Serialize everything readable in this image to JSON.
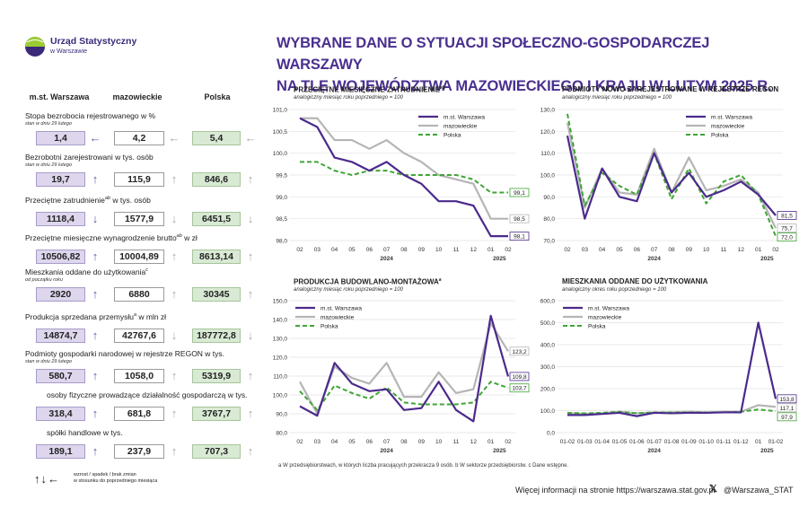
{
  "logo": {
    "line1": "Urząd Statystyczny",
    "line2": "w Warszawie"
  },
  "title": {
    "line1": "WYBRANE DANE O SYTUACJI SPOŁECZNO-GOSPODARCZEJ WARSZAWY",
    "line2": "NA TLE WOJEWÓDZTWA MAZOWIECKIEGO I KRAJU W LUTYM 2025 R."
  },
  "columns": {
    "war": "m.st. Warszawa",
    "maz": "mazowieckie",
    "pol": "Polska"
  },
  "indicators": [
    {
      "label": "Stopa bezrobocia rejestrowanego w %",
      "sup": "",
      "sub": "stan w dniu 29 lutego",
      "war": "1,4",
      "maz": "4,2",
      "pol": "5,4",
      "war_dir": "left",
      "maz_dir": "left",
      "pol_dir": "left"
    },
    {
      "label": "Bezrobotni zarejestrowani w tys. osób",
      "sup": "",
      "sub": "stan w dniu 29 lutego",
      "war": "19,7",
      "maz": "115,9",
      "pol": "846,6",
      "war_dir": "up",
      "maz_dir": "up",
      "pol_dir": "up"
    },
    {
      "label": "Przeciętne zatrudnienie",
      "sup": "ab",
      "label2": " w tys. osób",
      "sub": "",
      "war": "1118,4",
      "maz": "1577,9",
      "pol": "6451,5",
      "war_dir": "down",
      "maz_dir": "down",
      "pol_dir": "down"
    },
    {
      "label": "Przeciętne miesięczne wynagrodzenie brutto",
      "sup": "ab",
      "label2": " w zł",
      "sub": "",
      "war": "10506,82",
      "maz": "10004,89",
      "pol": "8613,14",
      "war_dir": "up",
      "maz_dir": "up",
      "pol_dir": "up"
    },
    {
      "label": "Mieszkania oddane do użytkowania",
      "sup": "c",
      "sub": "od początku roku",
      "war": "2920",
      "maz": "6880",
      "pol": "30345",
      "war_dir": "up",
      "maz_dir": "up",
      "pol_dir": "up"
    },
    {
      "label": "Produkcja sprzedana przemysłu",
      "sup": "a",
      "label2": " w mln zł",
      "sub": "",
      "war": "14874,7",
      "maz": "42767,6",
      "pol": "187772,8",
      "war_dir": "up",
      "maz_dir": "down",
      "pol_dir": "down"
    },
    {
      "label": "Podmioty gospodarki narodowej w rejestrze REGON w tys.",
      "sup": "",
      "sub": "stan w dniu 29 lutego",
      "war": "580,7",
      "maz": "1058,0",
      "pol": "5319,9",
      "war_dir": "up",
      "maz_dir": "up",
      "pol_dir": "up"
    },
    {
      "label": "osoby fizyczne prowadzące działalność gospodarczą w tys.",
      "sup": "",
      "sub": "",
      "war": "318,4",
      "maz": "681,8",
      "pol": "3767,7",
      "war_dir": "up",
      "maz_dir": "up",
      "pol_dir": "up"
    },
    {
      "label": "spółki handlowe w tys.",
      "sup": "",
      "sub": "",
      "war": "189,1",
      "maz": "237,9",
      "pol": "707,3",
      "war_dir": "up",
      "maz_dir": "up",
      "pol_dir": "up"
    }
  ],
  "arrow_legend": {
    "arrows": "↑↓←",
    "line1": "wzrost / spadek / brak zmian",
    "line2": "w stosunku do poprzedniego miesiąca"
  },
  "colors": {
    "war": "#4b2a8c",
    "maz": "#b5b5b5",
    "pol": "#3fa535",
    "title": "#4a2f8f"
  },
  "chart_data": [
    {
      "type": "line",
      "title": "PRZECIĘTNE MIESIĘCZNE ZATRUDNIENIE",
      "title_sup": "ab",
      "subtitle": "analogiczny miesiąc roku poprzedniego = 100",
      "categories": [
        "02",
        "03",
        "04",
        "05",
        "06",
        "07",
        "08",
        "09",
        "10",
        "11",
        "12",
        "01",
        "02"
      ],
      "year_labels": [
        {
          "label": "2024",
          "at": 5
        },
        {
          "label": "2025",
          "at": 11.5
        }
      ],
      "ylim": [
        98.0,
        101.0
      ],
      "yticks": [
        "98,0",
        "98,5",
        "99,0",
        "99,5",
        "100,0",
        "100,5",
        "101,0"
      ],
      "series": [
        {
          "name": "m.st. Warszawa",
          "key": "war",
          "values": [
            100.8,
            100.6,
            99.9,
            99.8,
            99.6,
            99.8,
            99.5,
            99.3,
            98.9,
            98.9,
            98.8,
            98.1,
            98.1
          ],
          "end_label": "98,1"
        },
        {
          "name": "mazowieckie",
          "key": "maz",
          "values": [
            100.8,
            100.8,
            100.3,
            100.3,
            100.1,
            100.3,
            100.0,
            99.8,
            99.5,
            99.4,
            99.3,
            98.5,
            98.5
          ],
          "end_label": "98,5"
        },
        {
          "name": "Polska",
          "key": "pol",
          "values": [
            99.8,
            99.8,
            99.6,
            99.5,
            99.6,
            99.6,
            99.5,
            99.5,
            99.5,
            99.5,
            99.4,
            99.1,
            99.1
          ],
          "end_label": "99,1"
        }
      ]
    },
    {
      "type": "line",
      "title": "PODMIOTY NOWO ZAREJESTROWANE W REJESTRZE REGON",
      "title_sup": "",
      "subtitle": "analogiczny miesiąc roku poprzedniego = 100",
      "categories": [
        "02",
        "03",
        "04",
        "05",
        "06",
        "07",
        "08",
        "09",
        "10",
        "11",
        "12",
        "01",
        "02"
      ],
      "year_labels": [
        {
          "label": "2024",
          "at": 5
        },
        {
          "label": "2025",
          "at": 11.5
        }
      ],
      "ylim": [
        70.0,
        130.0
      ],
      "yticks": [
        "70,0",
        "80,0",
        "90,0",
        "100,0",
        "110,0",
        "120,0",
        "130,0"
      ],
      "series": [
        {
          "name": "m.st. Warszawa",
          "key": "war",
          "values": [
            118,
            80,
            103,
            90,
            88,
            110,
            92,
            101,
            90,
            93,
            97,
            91,
            81.5
          ],
          "end_label": "81,5"
        },
        {
          "name": "mazowieckie",
          "key": "maz",
          "values": [
            124,
            85,
            103,
            92,
            91,
            112,
            92,
            108,
            93,
            95,
            98,
            92,
            75.7
          ],
          "end_label": "75,7"
        },
        {
          "name": "Polska",
          "key": "pol",
          "values": [
            128,
            86,
            101,
            95,
            91,
            110,
            89,
            103,
            87,
            97,
            100,
            91,
            72.0
          ],
          "end_label": "72,0"
        }
      ]
    },
    {
      "type": "line",
      "title": "PRODUKCJA BUDOWLANO-MONTAŻOWA",
      "title_sup": "a",
      "subtitle": "analogiczny miesiąc roku poprzedniego = 100",
      "categories": [
        "02",
        "03",
        "04",
        "05",
        "06",
        "07",
        "08",
        "09",
        "10",
        "11",
        "12",
        "01",
        "02"
      ],
      "year_labels": [
        {
          "label": "2024",
          "at": 5
        },
        {
          "label": "2025",
          "at": 11.5
        }
      ],
      "ylim": [
        80.0,
        150.0
      ],
      "yticks": [
        "80,0",
        "90,0",
        "100,0",
        "110,0",
        "120,0",
        "130,0",
        "140,0",
        "150,0"
      ],
      "series": [
        {
          "name": "m.st. Warszawa",
          "key": "war",
          "values": [
            94,
            89,
            117,
            106,
            102,
            103,
            92,
            93,
            107,
            92,
            86,
            142,
            109.8
          ],
          "end_label": "109,8"
        },
        {
          "name": "mazowieckie",
          "key": "maz",
          "values": [
            107,
            90,
            115,
            109,
            106,
            117,
            99,
            99,
            112,
            101,
            103,
            138,
            123.2
          ],
          "end_label": "123,2"
        },
        {
          "name": "Polska",
          "key": "pol",
          "values": [
            102,
            92,
            105,
            101,
            98,
            104,
            96,
            95,
            95,
            95,
            96,
            107,
            103.7
          ],
          "end_label": "103,7"
        }
      ]
    },
    {
      "type": "line",
      "title": "MIESZKANIA ODDANE DO UŻYTKOWANIA",
      "title_sup": "",
      "subtitle": "analogiczny okres roku poprzedniego = 100",
      "categories": [
        "01-02",
        "01-03",
        "01-04",
        "01-05",
        "01-06",
        "01-07",
        "01-08",
        "01-09",
        "01-10",
        "01-11",
        "01-12",
        "01",
        "01-02"
      ],
      "year_labels": [
        {
          "label": "2024",
          "at": 5
        },
        {
          "label": "2025",
          "at": 11.5
        }
      ],
      "ylim": [
        0,
        600.0
      ],
      "yticks": [
        "0,0",
        "100,0",
        "200,0",
        "300,0",
        "400,0",
        "500,0",
        "600,0"
      ],
      "series": [
        {
          "name": "m.st. Warszawa",
          "key": "war",
          "values": [
            80,
            80,
            85,
            90,
            75,
            90,
            88,
            90,
            90,
            92,
            92,
            500,
            153.8
          ],
          "end_label": "153,8"
        },
        {
          "name": "mazowieckie",
          "key": "maz",
          "values": [
            88,
            86,
            88,
            95,
            88,
            92,
            92,
            95,
            92,
            95,
            95,
            125,
            117.1
          ],
          "end_label": "117,1"
        },
        {
          "name": "Polska",
          "key": "pol",
          "values": [
            90,
            88,
            90,
            95,
            88,
            92,
            92,
            92,
            92,
            92,
            95,
            105,
            97.9
          ],
          "end_label": "97,9"
        }
      ]
    }
  ],
  "footnote": "a W przedsiębiorstwach, w których liczba pracujących przekracza 9 osób.   b W sektorze przedsiębiorstw.   c Dane wstępne.",
  "footer": {
    "info": "Więcej informacji na stronie https://warszawa.stat.gov.pl",
    "x_icon": "𝕏",
    "handle": "@Warszawa_STAT"
  }
}
